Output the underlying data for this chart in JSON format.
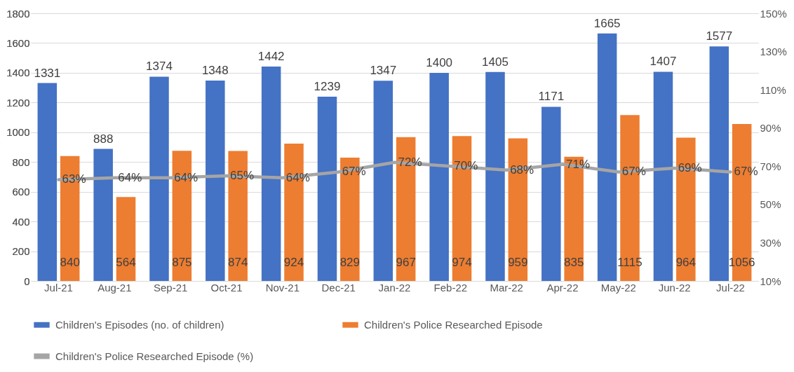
{
  "chart_data": {
    "type": "bar",
    "categories": [
      "Jul-21",
      "Aug-21",
      "Sep-21",
      "Oct-21",
      "Nov-21",
      "Dec-21",
      "Jan-22",
      "Feb-22",
      "Mar-22",
      "Apr-22",
      "May-22",
      "Jun-22",
      "Jul-22"
    ],
    "series": [
      {
        "name": "Children's Episodes (no. of children)",
        "color": "#4472c4",
        "values": [
          1331,
          888,
          1374,
          1348,
          1442,
          1239,
          1347,
          1400,
          1405,
          1171,
          1665,
          1407,
          1577
        ],
        "value_labels": [
          "1331",
          "888",
          "1374",
          "1348",
          "1442",
          "1239",
          "1347",
          "1400",
          "1405",
          "1171",
          "1665",
          "1407",
          "1577"
        ]
      },
      {
        "name": "Children's Police Researched Episode",
        "color": "#ed7d31",
        "values": [
          840,
          564,
          875,
          874,
          924,
          829,
          967,
          974,
          959,
          835,
          1115,
          964,
          1056
        ],
        "value_labels": [
          "840",
          "564",
          "875",
          "874",
          "924",
          "829",
          "967",
          "974",
          "959",
          "835",
          "1115",
          "964",
          "1056"
        ]
      },
      {
        "name": "Children's Police Researched Episode (%)",
        "color": "#a5a5a5",
        "type": "line",
        "axis": "y2",
        "values": [
          63,
          64,
          64,
          65,
          64,
          67,
          72,
          70,
          68,
          71,
          67,
          69,
          67
        ],
        "value_labels": [
          "63%",
          "64%",
          "64%",
          "65%",
          "64%",
          "67%",
          "72%",
          "70%",
          "68%",
          "71%",
          "67%",
          "69%",
          "67%"
        ]
      }
    ],
    "ylim": [
      0,
      1800
    ],
    "yticks": [
      0,
      200,
      400,
      600,
      800,
      1000,
      1200,
      1400,
      1600,
      1800
    ],
    "y2lim": [
      10,
      150
    ],
    "y2ticks": [
      {
        "value": 10,
        "label": "10%"
      },
      {
        "value": 30,
        "label": "30%"
      },
      {
        "value": 50,
        "label": "50%"
      },
      {
        "value": 70,
        "label": "70%"
      },
      {
        "value": 90,
        "label": "90%"
      },
      {
        "value": 110,
        "label": "110%"
      },
      {
        "value": 130,
        "label": "130%"
      },
      {
        "value": 150,
        "label": "150%"
      }
    ],
    "grid": "y",
    "legend": "bottom",
    "marker": "none",
    "line_style": "solid"
  }
}
